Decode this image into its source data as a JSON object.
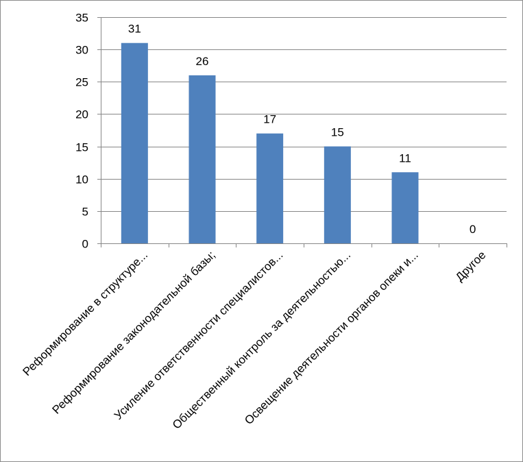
{
  "chart_data": {
    "type": "bar",
    "title": "",
    "xlabel": "",
    "ylabel": "",
    "categories": [
      "Реформирование в структуре...",
      "Реформирование законодательной базы;",
      "Усиление ответственности специалистов...",
      "Общественный контроль за деятельностью...",
      "Освещение деятельности органов опеки и...",
      "Другое"
    ],
    "values": [
      31,
      26,
      17,
      15,
      11,
      0
    ],
    "data_labels": [
      "31",
      "26",
      "17",
      "15",
      "11",
      "0"
    ],
    "ylim": [
      0,
      35
    ],
    "yticks": [
      "0",
      "5",
      "10",
      "15",
      "20",
      "25",
      "30",
      "35"
    ],
    "grid": true,
    "legend": "none",
    "colors": {
      "bar": "#4f81bd",
      "gridline": "#878787",
      "axis": "#878787",
      "border": "#8c8c8c"
    }
  }
}
